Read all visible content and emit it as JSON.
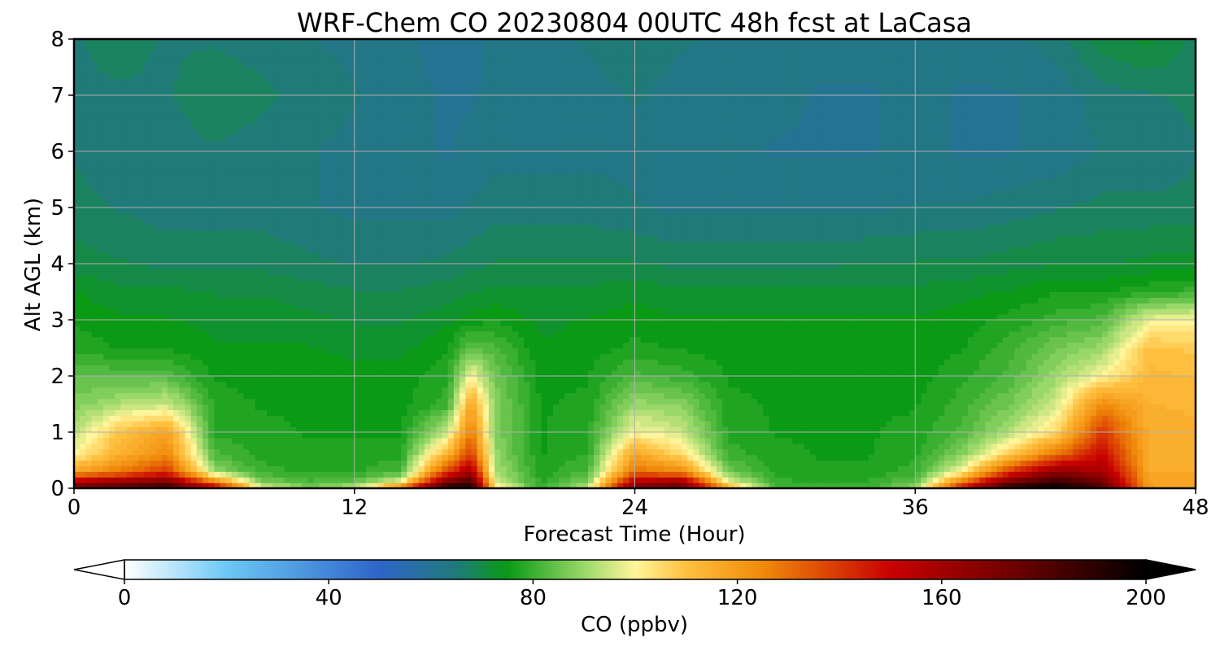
{
  "chart_data": {
    "type": "heatmap",
    "title": "WRF-Chem CO  20230804 00UTC 48h fcst at LaCasa",
    "xlabel": "Forecast Time (Hour)",
    "ylabel": "Alt AGL (km)",
    "xlim": [
      0,
      48
    ],
    "ylim": [
      0,
      8
    ],
    "xticks": [
      "0",
      "12",
      "24",
      "36",
      "48"
    ],
    "yticks": [
      "0",
      "1",
      "2",
      "3",
      "4",
      "5",
      "6",
      "7",
      "8"
    ],
    "grid": true,
    "colorbar": {
      "label": "CO  (ppbv)",
      "range": [
        0,
        200
      ],
      "ticks": [
        "0",
        "40",
        "80",
        "120",
        "160",
        "200"
      ],
      "extend": "both",
      "orientation": "horizontal",
      "colors": [
        {
          "value": 0,
          "color": "#ffffff"
        },
        {
          "value": 20,
          "color": "#6cc8f5"
        },
        {
          "value": 50,
          "color": "#2e64c8"
        },
        {
          "value": 65,
          "color": "#1f7a78"
        },
        {
          "value": 75,
          "color": "#0a9a15"
        },
        {
          "value": 90,
          "color": "#9ad86a"
        },
        {
          "value": 100,
          "color": "#fff59a"
        },
        {
          "value": 110,
          "color": "#ffc040"
        },
        {
          "value": 125,
          "color": "#f08a0a"
        },
        {
          "value": 150,
          "color": "#c80000"
        },
        {
          "value": 175,
          "color": "#6a0000"
        },
        {
          "value": 200,
          "color": "#000000"
        }
      ]
    },
    "times": [
      0,
      2,
      4,
      6,
      8,
      10,
      12,
      14,
      16,
      17,
      18,
      20,
      22,
      24,
      26,
      28,
      30,
      32,
      34,
      36,
      38,
      40,
      42,
      44,
      46,
      48
    ],
    "altitudes": [
      0,
      0.1,
      0.3,
      0.6,
      1,
      1.5,
      2,
      2.5,
      3,
      3.5,
      4,
      5,
      6,
      7,
      8
    ],
    "values": [
      [
        178,
        160,
        118,
        100,
        93,
        87,
        84,
        78,
        76,
        74,
        70,
        67,
        66,
        66,
        66
      ],
      [
        185,
        168,
        128,
        115,
        110,
        92,
        83,
        76,
        74,
        72,
        69,
        66,
        65,
        66,
        67
      ],
      [
        190,
        175,
        140,
        125,
        118,
        95,
        83,
        76,
        74,
        72,
        68,
        65,
        65,
        66,
        66
      ],
      [
        160,
        130,
        90,
        82,
        78,
        78,
        76,
        74,
        73,
        71,
        68,
        65,
        66,
        68,
        66
      ],
      [
        100,
        88,
        80,
        78,
        77,
        76,
        75,
        74,
        73,
        71,
        68,
        65,
        65,
        67,
        65
      ],
      [
        88,
        82,
        78,
        77,
        76,
        76,
        75,
        74,
        72,
        70,
        67,
        64,
        64,
        65,
        64
      ],
      [
        95,
        85,
        78,
        77,
        76,
        75,
        75,
        73,
        71,
        69,
        66,
        63,
        63,
        64,
        63
      ],
      [
        135,
        100,
        82,
        78,
        76,
        75,
        75,
        73,
        71,
        69,
        66,
        63,
        62,
        62,
        62
      ],
      [
        200,
        175,
        140,
        115,
        95,
        80,
        78,
        76,
        73,
        70,
        67,
        63,
        61,
        61,
        60
      ],
      [
        195,
        185,
        160,
        140,
        128,
        118,
        100,
        84,
        75,
        71,
        68,
        64,
        62,
        61,
        60
      ],
      [
        105,
        98,
        92,
        90,
        88,
        88,
        86,
        82,
        76,
        72,
        69,
        65,
        63,
        62,
        62
      ],
      [
        80,
        78,
        77,
        76,
        76,
        76,
        75,
        74,
        73,
        72,
        69,
        65,
        63,
        63,
        63
      ],
      [
        95,
        88,
        82,
        79,
        78,
        77,
        76,
        75,
        74,
        72,
        69,
        65,
        63,
        63,
        64
      ],
      [
        175,
        160,
        130,
        118,
        100,
        90,
        82,
        77,
        75,
        73,
        69,
        64,
        63,
        64,
        65
      ],
      [
        180,
        165,
        125,
        105,
        95,
        88,
        80,
        76,
        74,
        72,
        68,
        63,
        62,
        63,
        64
      ],
      [
        120,
        100,
        86,
        80,
        78,
        77,
        76,
        75,
        74,
        72,
        68,
        63,
        62,
        62,
        63
      ],
      [
        82,
        80,
        78,
        77,
        76,
        76,
        75,
        75,
        74,
        72,
        68,
        63,
        61,
        62,
        63
      ],
      [
        80,
        78,
        77,
        76,
        76,
        76,
        75,
        75,
        74,
        72,
        68,
        63,
        61,
        61,
        62
      ],
      [
        80,
        79,
        77,
        76,
        76,
        76,
        75,
        75,
        74,
        72,
        69,
        63,
        61,
        61,
        62
      ],
      [
        90,
        85,
        80,
        78,
        77,
        76,
        75,
        75,
        74,
        72,
        69,
        64,
        62,
        62,
        62
      ],
      [
        150,
        130,
        100,
        88,
        82,
        80,
        78,
        76,
        75,
        73,
        69,
        64,
        61,
        61,
        62
      ],
      [
        195,
        175,
        140,
        108,
        92,
        86,
        82,
        80,
        77,
        74,
        70,
        65,
        61,
        61,
        63
      ],
      [
        200,
        190,
        165,
        130,
        105,
        95,
        90,
        86,
        80,
        76,
        71,
        66,
        62,
        62,
        65
      ],
      [
        185,
        175,
        160,
        150,
        140,
        125,
        100,
        90,
        82,
        76,
        71,
        67,
        64,
        65,
        70
      ],
      [
        120,
        118,
        116,
        115,
        115,
        114,
        112,
        110,
        98,
        78,
        72,
        67,
        64,
        66,
        72
      ],
      [
        118,
        117,
        116,
        115,
        115,
        113,
        111,
        108,
        100,
        80,
        72,
        67,
        66,
        67,
        68
      ]
    ]
  }
}
